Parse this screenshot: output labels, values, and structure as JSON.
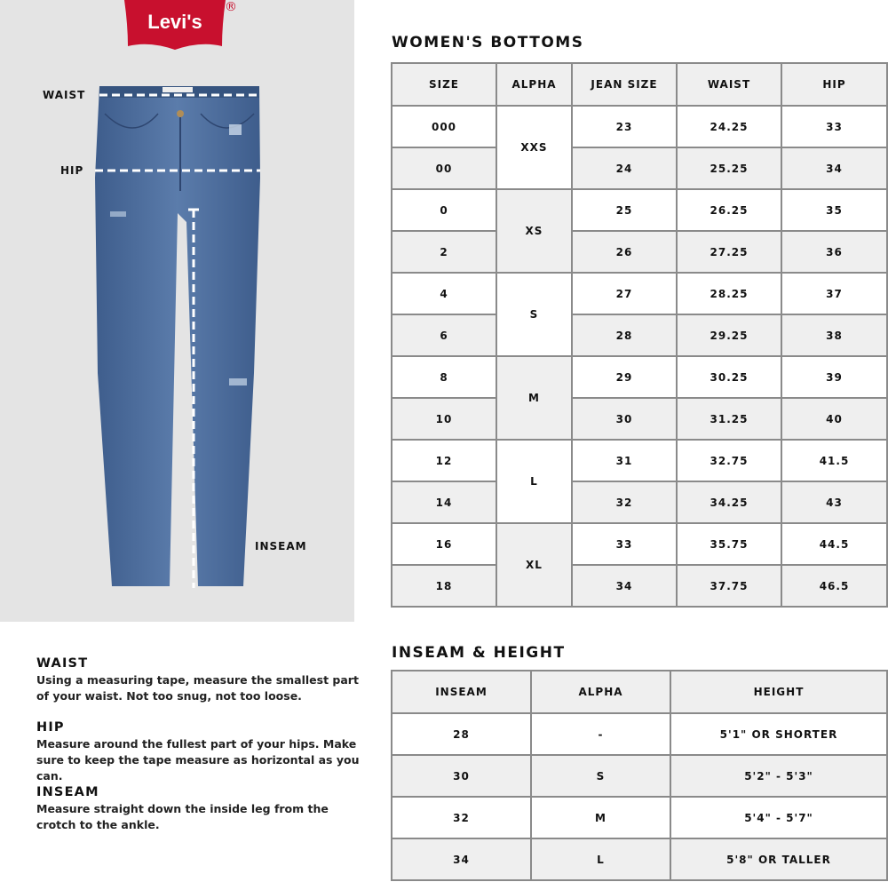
{
  "brand": {
    "logo_text": "Levi's",
    "registered_mark": "®",
    "logo_color": "#c8102e"
  },
  "diagram": {
    "labels": {
      "waist": "WAIST",
      "hip": "HIP",
      "inseam": "INSEAM"
    },
    "denim_color": "#4f6f9c",
    "background_color": "#e4e4e4"
  },
  "womens_bottoms": {
    "title": "WOMEN'S BOTTOMS",
    "headers": [
      "SIZE",
      "ALPHA",
      "JEAN SIZE",
      "WAIST",
      "HIP"
    ],
    "alpha_groups": [
      "XXS",
      "XS",
      "S",
      "M",
      "L",
      "XL"
    ],
    "rows": [
      {
        "size": "000",
        "jean": "23",
        "waist": "24.25",
        "hip": "33"
      },
      {
        "size": "00",
        "jean": "24",
        "waist": "25.25",
        "hip": "34"
      },
      {
        "size": "0",
        "jean": "25",
        "waist": "26.25",
        "hip": "35"
      },
      {
        "size": "2",
        "jean": "26",
        "waist": "27.25",
        "hip": "36"
      },
      {
        "size": "4",
        "jean": "27",
        "waist": "28.25",
        "hip": "37"
      },
      {
        "size": "6",
        "jean": "28",
        "waist": "29.25",
        "hip": "38"
      },
      {
        "size": "8",
        "jean": "29",
        "waist": "30.25",
        "hip": "39"
      },
      {
        "size": "10",
        "jean": "30",
        "waist": "31.25",
        "hip": "40"
      },
      {
        "size": "12",
        "jean": "31",
        "waist": "32.75",
        "hip": "41.5"
      },
      {
        "size": "14",
        "jean": "32",
        "waist": "34.25",
        "hip": "43"
      },
      {
        "size": "16",
        "jean": "33",
        "waist": "35.75",
        "hip": "44.5"
      },
      {
        "size": "18",
        "jean": "34",
        "waist": "37.75",
        "hip": "46.5"
      }
    ]
  },
  "inseam_height": {
    "title": "INSEAM & HEIGHT",
    "headers": [
      "INSEAM",
      "ALPHA",
      "HEIGHT"
    ],
    "rows": [
      {
        "inseam": "28",
        "alpha": "-",
        "height": "5'1\" OR SHORTER"
      },
      {
        "inseam": "30",
        "alpha": "S",
        "height": "5'2\" - 5'3\""
      },
      {
        "inseam": "32",
        "alpha": "M",
        "height": "5'4\" - 5'7\""
      },
      {
        "inseam": "34",
        "alpha": "L",
        "height": "5'8\" OR TALLER"
      }
    ]
  },
  "how_to_measure": [
    {
      "title": "WAIST",
      "text": "Using a measuring tape, measure the smallest part of your waist. Not too snug, not too loose."
    },
    {
      "title": "HIP",
      "text": "Measure around the fullest part of your hips. Make sure to keep the tape measure as horizontal as you can."
    },
    {
      "title": "INSEAM",
      "text": "Measure straight down the inside leg from the crotch to the ankle."
    }
  ]
}
